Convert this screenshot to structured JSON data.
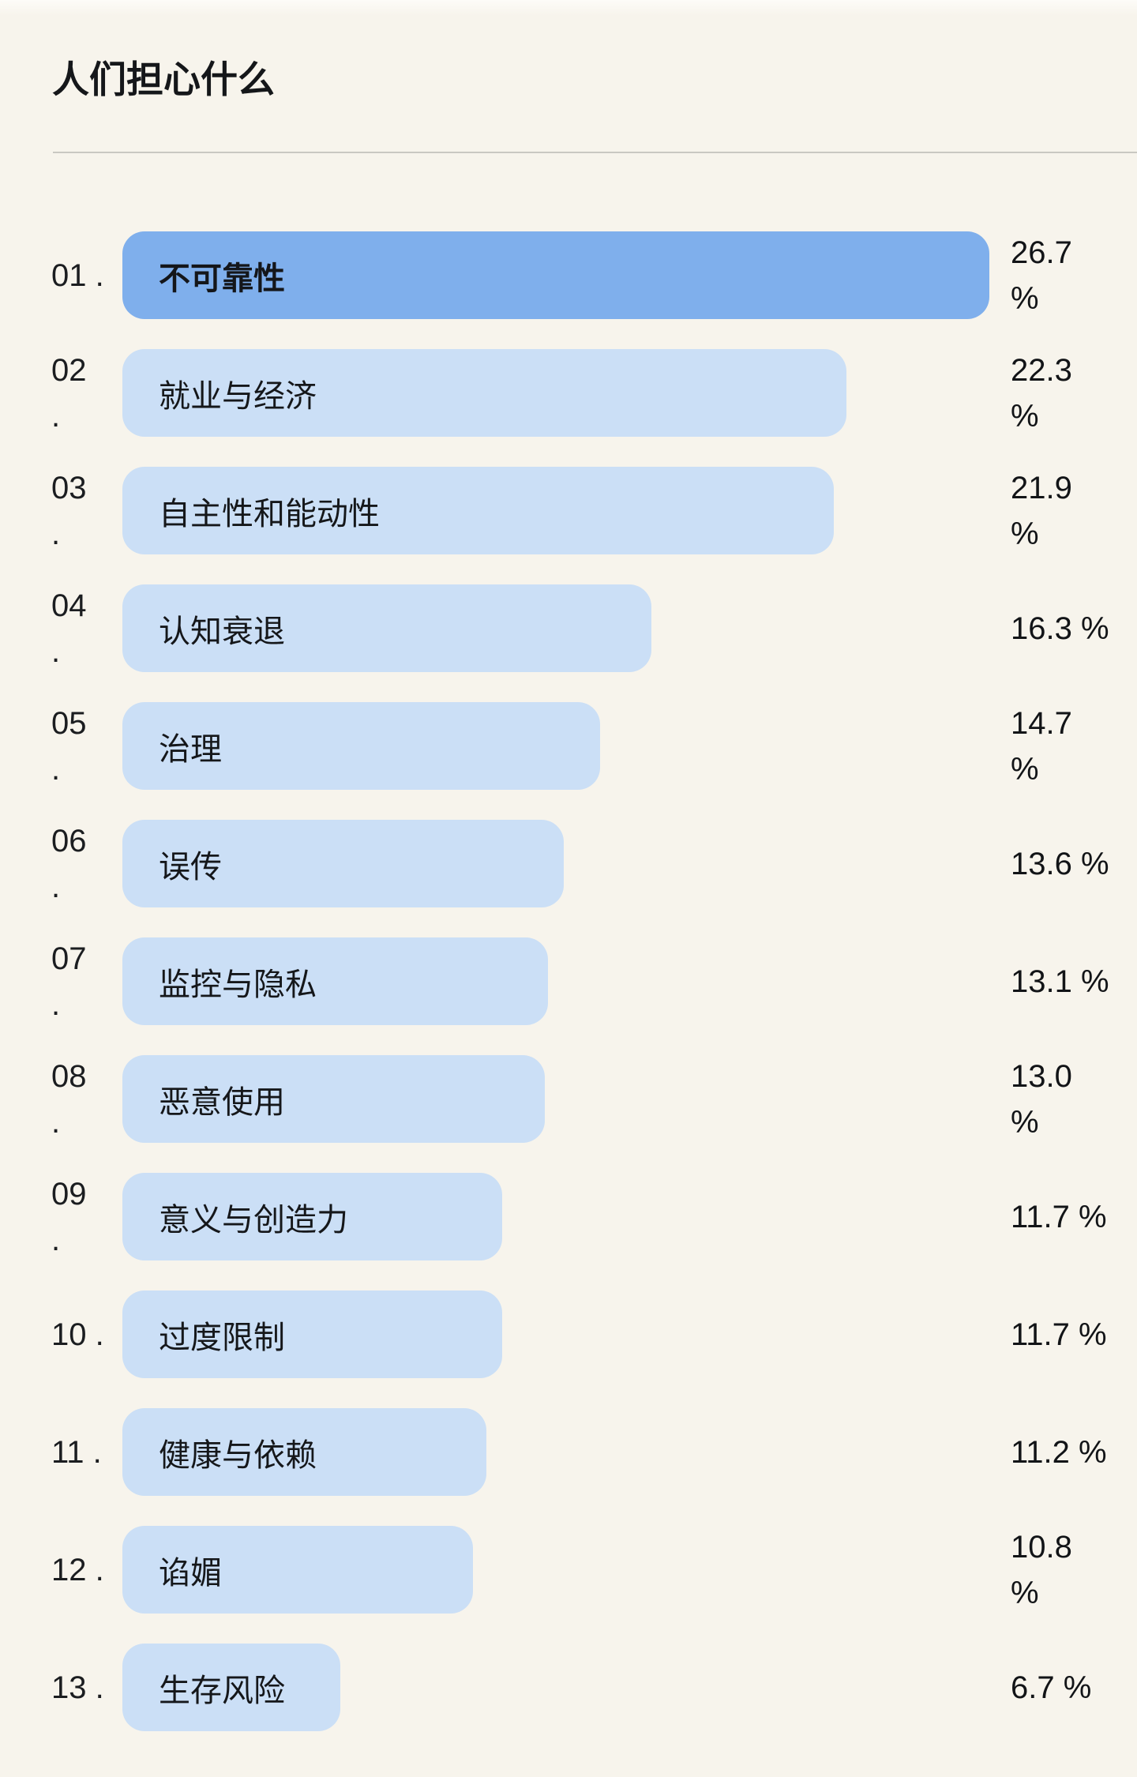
{
  "page": {
    "title": "人们担心什么",
    "background_color": "#f7f4ec"
  },
  "chart_data": {
    "type": "bar",
    "orientation": "horizontal",
    "title": "人们担心什么",
    "unit": "%",
    "xlim": [
      0,
      26.7
    ],
    "grid": false,
    "legend": false,
    "highlight_color": "#7fafec",
    "bar_color": "#cbdff6",
    "categories": [
      "不可靠性",
      "就业与经济",
      "自主性和能动性",
      "认知衰退",
      "治理",
      "误传",
      "监控与隐私",
      "恶意使用",
      "意义与创造力",
      "过度限制",
      "健康与依赖",
      "谄媚",
      "生存风险"
    ],
    "values": [
      26.7,
      22.3,
      21.9,
      16.3,
      14.7,
      13.6,
      13.1,
      13.0,
      11.7,
      11.7,
      11.2,
      10.8,
      6.7
    ],
    "rows": [
      {
        "rank_display": "01 .",
        "label": "不可靠性",
        "value": 26.7,
        "value_display": "26.7\n%",
        "highlighted": true
      },
      {
        "rank_display": "02\n.",
        "label": "就业与经济",
        "value": 22.3,
        "value_display": "22.3\n%",
        "highlighted": false
      },
      {
        "rank_display": "03\n.",
        "label": "自主性和能动性",
        "value": 21.9,
        "value_display": "21.9\n%",
        "highlighted": false
      },
      {
        "rank_display": "04\n.",
        "label": "认知衰退",
        "value": 16.3,
        "value_display": "16.3 %",
        "highlighted": false
      },
      {
        "rank_display": "05\n.",
        "label": "治理",
        "value": 14.7,
        "value_display": "14.7\n%",
        "highlighted": false
      },
      {
        "rank_display": "06\n.",
        "label": "误传",
        "value": 13.6,
        "value_display": "13.6 %",
        "highlighted": false
      },
      {
        "rank_display": "07\n.",
        "label": "监控与隐私",
        "value": 13.1,
        "value_display": "13.1 %",
        "highlighted": false
      },
      {
        "rank_display": "08\n.",
        "label": "恶意使用",
        "value": 13.0,
        "value_display": "13.0\n%",
        "highlighted": false
      },
      {
        "rank_display": "09\n.",
        "label": "意义与创造力",
        "value": 11.7,
        "value_display": "11.7 %",
        "highlighted": false
      },
      {
        "rank_display": "10 .",
        "label": "过度限制",
        "value": 11.7,
        "value_display": "11.7 %",
        "highlighted": false
      },
      {
        "rank_display": "11 .",
        "label": "健康与依赖",
        "value": 11.2,
        "value_display": "11.2 %",
        "highlighted": false
      },
      {
        "rank_display": "12 .",
        "label": "谄媚",
        "value": 10.8,
        "value_display": "10.8\n%",
        "highlighted": false
      },
      {
        "rank_display": "13 .",
        "label": "生存风险",
        "value": 6.7,
        "value_display": "6.7 %",
        "highlighted": false
      }
    ]
  }
}
